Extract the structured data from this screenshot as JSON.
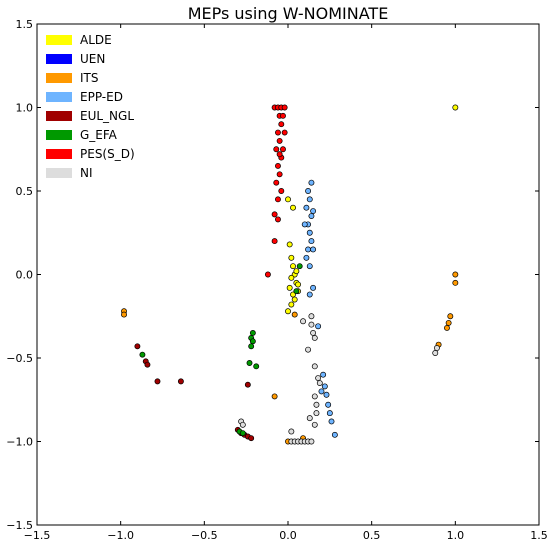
{
  "chart_data": {
    "type": "scatter",
    "title": "MEPs using W-NOMINATE",
    "xlabel": "",
    "ylabel": "",
    "xlim": [
      -1.5,
      1.5
    ],
    "ylim": [
      -1.5,
      1.5
    ],
    "x_ticks": [
      "−1.5",
      "−1.0",
      "−0.5",
      "0.0",
      "0.5",
      "1.0",
      "1.5"
    ],
    "y_ticks": [
      "1.5",
      "1.0",
      "0.5",
      "0.0",
      "−0.5",
      "−1.0",
      "−1.5"
    ],
    "grid": false,
    "legend_position": "top-left",
    "series": [
      {
        "name": "ALDE",
        "color": "#ffff00",
        "points": [
          [
            0.0,
            0.45
          ],
          [
            0.03,
            0.4
          ],
          [
            0.01,
            0.18
          ],
          [
            0.02,
            0.1
          ],
          [
            0.03,
            0.05
          ],
          [
            0.04,
            0.0
          ],
          [
            0.02,
            -0.02
          ],
          [
            0.05,
            -0.05
          ],
          [
            0.01,
            -0.08
          ],
          [
            0.06,
            -0.1
          ],
          [
            0.03,
            -0.12
          ],
          [
            0.04,
            -0.15
          ],
          [
            0.02,
            -0.18
          ],
          [
            0.0,
            -0.22
          ],
          [
            0.05,
            0.02
          ],
          [
            0.06,
            -0.06
          ],
          [
            1.0,
            1.0
          ]
        ]
      },
      {
        "name": "UEN",
        "color": "#0000ff",
        "points": []
      },
      {
        "name": "ITS",
        "color": "#ff9900",
        "points": [
          [
            -0.98,
            -0.22
          ],
          [
            -0.98,
            -0.24
          ],
          [
            -0.08,
            -0.73
          ],
          [
            0.0,
            -1.0
          ],
          [
            1.0,
            0.0
          ],
          [
            1.0,
            -0.05
          ],
          [
            0.97,
            -0.25
          ],
          [
            0.96,
            -0.29
          ],
          [
            0.95,
            -0.32
          ],
          [
            0.9,
            -0.42
          ],
          [
            0.04,
            -0.24
          ],
          [
            0.09,
            -0.98
          ]
        ]
      },
      {
        "name": "EPP-ED",
        "color": "#6eb4ff",
        "points": [
          [
            0.14,
            0.55
          ],
          [
            0.12,
            0.5
          ],
          [
            0.13,
            0.45
          ],
          [
            0.11,
            0.4
          ],
          [
            0.14,
            0.35
          ],
          [
            0.12,
            0.3
          ],
          [
            0.13,
            0.25
          ],
          [
            0.14,
            0.2
          ],
          [
            0.12,
            0.15
          ],
          [
            0.11,
            0.1
          ],
          [
            0.15,
            0.38
          ],
          [
            0.1,
            0.3
          ],
          [
            0.15,
            0.15
          ],
          [
            0.13,
            0.05
          ],
          [
            0.21,
            -0.6
          ],
          [
            0.22,
            -0.67
          ],
          [
            0.23,
            -0.72
          ],
          [
            0.24,
            -0.78
          ],
          [
            0.25,
            -0.83
          ],
          [
            0.26,
            -0.88
          ],
          [
            0.28,
            -0.96
          ],
          [
            0.2,
            -0.7
          ],
          [
            0.15,
            -0.08
          ],
          [
            0.18,
            -0.31
          ],
          [
            0.13,
            -0.12
          ]
        ]
      },
      {
        "name": "EUL_NGL",
        "color": "#a00000",
        "points": [
          [
            -0.9,
            -0.43
          ],
          [
            -0.85,
            -0.52
          ],
          [
            -0.84,
            -0.54
          ],
          [
            -0.78,
            -0.64
          ],
          [
            -0.64,
            -0.64
          ],
          [
            -0.24,
            -0.66
          ],
          [
            -0.3,
            -0.93
          ],
          [
            -0.28,
            -0.95
          ],
          [
            -0.26,
            -0.96
          ],
          [
            -0.24,
            -0.97
          ],
          [
            -0.22,
            -0.98
          ]
        ]
      },
      {
        "name": "G_EFA",
        "color": "#009900",
        "points": [
          [
            -0.87,
            -0.48
          ],
          [
            -0.21,
            -0.35
          ],
          [
            -0.22,
            -0.38
          ],
          [
            -0.21,
            -0.4
          ],
          [
            -0.22,
            -0.43
          ],
          [
            -0.23,
            -0.53
          ],
          [
            -0.19,
            -0.55
          ],
          [
            -0.29,
            -0.94
          ],
          [
            -0.27,
            -0.95
          ],
          [
            0.05,
            -0.1
          ],
          [
            0.07,
            0.05
          ]
        ]
      },
      {
        "name": "PES(S_D)",
        "color": "#ff0000",
        "points": [
          [
            -0.08,
            1.0
          ],
          [
            -0.06,
            1.0
          ],
          [
            -0.04,
            1.0
          ],
          [
            -0.02,
            1.0
          ],
          [
            -0.05,
            0.95
          ],
          [
            -0.04,
            0.9
          ],
          [
            -0.06,
            0.85
          ],
          [
            -0.05,
            0.8
          ],
          [
            -0.07,
            0.75
          ],
          [
            -0.04,
            0.7
          ],
          [
            -0.06,
            0.65
          ],
          [
            -0.05,
            0.6
          ],
          [
            -0.07,
            0.55
          ],
          [
            -0.04,
            0.5
          ],
          [
            -0.06,
            0.45
          ],
          [
            -0.03,
            0.95
          ],
          [
            -0.02,
            0.85
          ],
          [
            -0.03,
            0.75
          ],
          [
            -0.05,
            0.72
          ],
          [
            -0.08,
            0.36
          ],
          [
            -0.06,
            0.33
          ],
          [
            -0.08,
            0.2
          ],
          [
            -0.12,
            0.0
          ]
        ]
      },
      {
        "name": "NI",
        "color": "#dddddd",
        "points": [
          [
            0.02,
            -0.94
          ],
          [
            0.02,
            -1.0
          ],
          [
            0.04,
            -1.0
          ],
          [
            0.06,
            -1.0
          ],
          [
            0.08,
            -1.0
          ],
          [
            0.1,
            -1.0
          ],
          [
            0.12,
            -1.0
          ],
          [
            0.14,
            -1.0
          ],
          [
            0.16,
            -0.9
          ],
          [
            -0.28,
            -0.88
          ],
          [
            -0.27,
            -0.9
          ],
          [
            0.16,
            -0.55
          ],
          [
            0.18,
            -0.62
          ],
          [
            0.19,
            -0.65
          ],
          [
            0.16,
            -0.73
          ],
          [
            0.17,
            -0.78
          ],
          [
            0.13,
            -0.86
          ],
          [
            0.17,
            -0.83
          ],
          [
            0.14,
            -0.3
          ],
          [
            0.16,
            -0.38
          ],
          [
            0.12,
            -0.45
          ],
          [
            0.14,
            -0.25
          ],
          [
            0.15,
            -0.35
          ],
          [
            0.09,
            -0.28
          ],
          [
            0.88,
            -0.47
          ],
          [
            0.89,
            -0.44
          ]
        ]
      }
    ]
  }
}
